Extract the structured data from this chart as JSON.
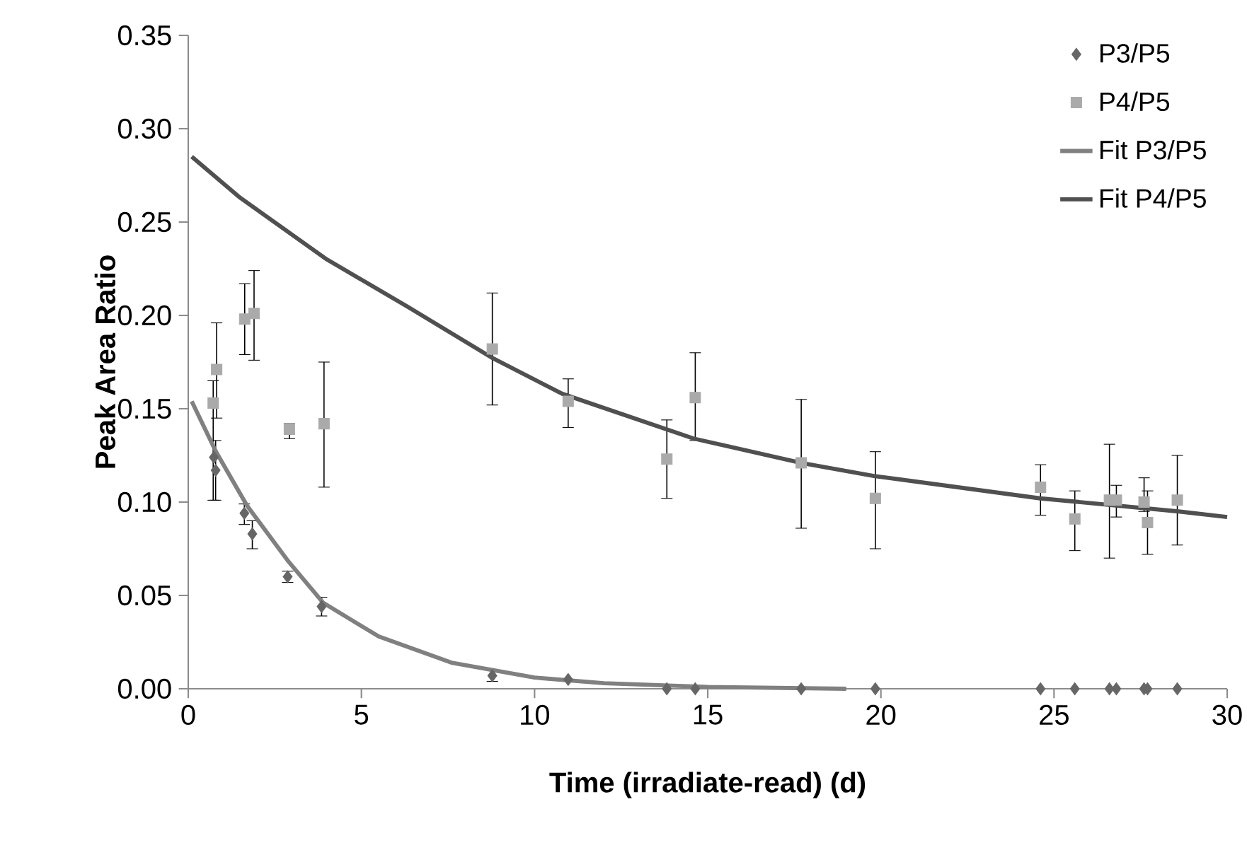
{
  "chart_data": {
    "type": "scatter",
    "xlabel": "Time (irradiate-read) (d)",
    "ylabel": "Peak Area Ratio",
    "xlim": [
      0,
      30
    ],
    "ylim": [
      0,
      0.35
    ],
    "xticks": [
      0,
      5,
      10,
      15,
      20,
      25,
      30
    ],
    "yticks": [
      {
        "value": 0,
        "label": "0.00"
      },
      {
        "value": 0.05,
        "label": "0.05"
      },
      {
        "value": 0.1,
        "label": "0.10"
      },
      {
        "value": 0.15,
        "label": "0.15"
      },
      {
        "value": 0.2,
        "label": "0.20"
      },
      {
        "value": 0.25,
        "label": "0.25"
      },
      {
        "value": 0.3,
        "label": "0.30"
      },
      {
        "value": 0.35,
        "label": "0.35"
      }
    ],
    "legend": "top right",
    "series": [
      {
        "name": "P3/P5",
        "marker": "diamond",
        "color": "#666666",
        "x": [
          0.74,
          0.79,
          1.62,
          1.85,
          2.87,
          3.85,
          8.78,
          10.97,
          13.82,
          14.64,
          17.7,
          19.84,
          24.61,
          25.6,
          26.6,
          26.8,
          27.6,
          27.7,
          28.56
        ],
        "values": [
          0.124,
          0.117,
          0.094,
          0.083,
          0.06,
          0.044,
          0.007,
          0.005,
          0,
          0,
          0,
          0,
          0,
          0,
          0,
          0,
          0,
          0,
          0
        ],
        "errors": [
          null,
          [
            0.101,
            0.133
          ],
          [
            0.088,
            0.099
          ],
          [
            0.075,
            0.09
          ],
          [
            0.057,
            0.063
          ],
          [
            0.039,
            0.049
          ],
          [
            0.004,
            0.01
          ],
          null,
          null,
          null,
          null,
          null,
          null,
          null,
          null,
          null,
          null,
          null,
          null
        ]
      },
      {
        "name": "P4/P5",
        "marker": "square",
        "color": "#aaaaaa",
        "x": [
          0.72,
          0.82,
          1.63,
          1.9,
          2.92,
          3.92,
          8.78,
          10.97,
          13.82,
          14.64,
          17.7,
          19.84,
          24.61,
          25.6,
          26.6,
          26.8,
          27.6,
          27.7,
          28.56
        ],
        "values": [
          0.153,
          0.171,
          0.198,
          0.201,
          0.139,
          0.142,
          0.182,
          0.154,
          0.123,
          0.156,
          0.121,
          0.102,
          0.108,
          0.091,
          0.101,
          0.101,
          0.1,
          0.089,
          0.101
        ],
        "errors": [
          [
            0.101,
            0.165
          ],
          [
            0.145,
            0.196
          ],
          [
            0.179,
            0.217
          ],
          [
            0.176,
            0.224
          ],
          [
            0.134,
            0.142
          ],
          [
            0.108,
            0.175
          ],
          [
            0.152,
            0.212
          ],
          [
            0.14,
            0.166
          ],
          [
            0.102,
            0.144
          ],
          [
            0.133,
            0.18
          ],
          [
            0.086,
            0.155
          ],
          [
            0.075,
            0.127
          ],
          [
            0.093,
            0.12
          ],
          [
            0.074,
            0.106
          ],
          [
            0.07,
            0.131
          ],
          [
            0.092,
            0.109
          ],
          [
            0.095,
            0.113
          ],
          [
            0.072,
            0.106
          ],
          [
            0.077,
            0.125
          ]
        ]
      },
      {
        "name": "Fit P3/P5",
        "type": "line",
        "marker": "none",
        "line_style": "solid",
        "color": "#808080",
        "x": [
          0.1,
          0.8,
          1.7,
          2.9,
          3.9,
          5.5,
          7.6,
          10,
          12,
          15,
          19
        ],
        "values": [
          0.154,
          0.127,
          0.098,
          0.068,
          0.046,
          0.028,
          0.014,
          0.006,
          0.003,
          0.001,
          0
        ]
      },
      {
        "name": "Fit P4/P5",
        "type": "line",
        "marker": "none",
        "line_style": "solid",
        "color": "#505050",
        "x": [
          0.1,
          1.5,
          4,
          6.3,
          8.8,
          10.8,
          14.6,
          17.7,
          19.8,
          24.6,
          28.6,
          30
        ],
        "values": [
          0.285,
          0.263,
          0.23,
          0.205,
          0.177,
          0.158,
          0.134,
          0.121,
          0.114,
          0.102,
          0.095,
          0.092
        ]
      }
    ]
  }
}
